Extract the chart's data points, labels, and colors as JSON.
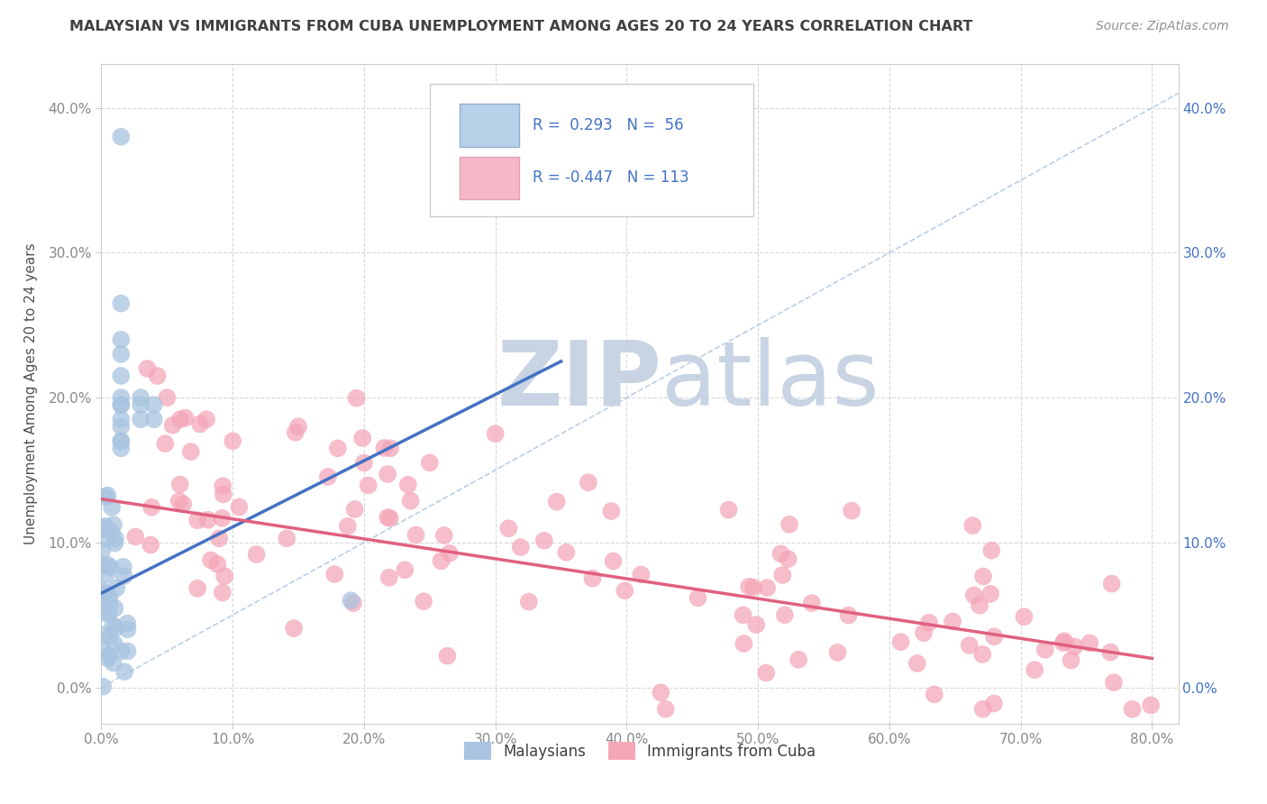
{
  "title": "MALAYSIAN VS IMMIGRANTS FROM CUBA UNEMPLOYMENT AMONG AGES 20 TO 24 YEARS CORRELATION CHART",
  "source": "Source: ZipAtlas.com",
  "ylabel": "Unemployment Among Ages 20 to 24 years",
  "xlim": [
    0.0,
    0.82
  ],
  "ylim": [
    -0.025,
    0.43
  ],
  "yticks": [
    0.0,
    0.1,
    0.2,
    0.3,
    0.4
  ],
  "ytick_labels": [
    "0.0%",
    "10.0%",
    "20.0%",
    "30.0%",
    "40.0%"
  ],
  "xticks": [
    0.0,
    0.1,
    0.2,
    0.3,
    0.4,
    0.5,
    0.6,
    0.7,
    0.8
  ],
  "xtick_labels": [
    "0.0%",
    "10.0%",
    "20.0%",
    "30.0%",
    "40.0%",
    "50.0%",
    "60.0%",
    "70.0%",
    "80.0%"
  ],
  "r_malaysian": 0.293,
  "n_malaysian": 56,
  "r_cuba": -0.447,
  "n_cuba": 113,
  "scatter_blue_color": "#a8c4e0",
  "scatter_pink_color": "#f4a7b9",
  "line_blue_color": "#4472c4",
  "line_pink_color": "#e06080",
  "diagonal_color": "#a8c4e0",
  "title_color": "#404040",
  "source_color": "#909090",
  "legend_text_color": "#4472c4",
  "axis_tick_color": "#4472c4",
  "grid_color": "#d8d8d8",
  "background_color": "#ffffff",
  "watermark_zip_color": "#c8d4e4",
  "watermark_atlas_color": "#c8d4e4",
  "legend_box_color_blue": "#b8d0e8",
  "legend_box_color_pink": "#f4b8c8",
  "malaysians_label": "Malaysians",
  "cuba_label": "Immigrants from Cuba",
  "blue_line_x0": 0.0,
  "blue_line_y0": 0.065,
  "blue_line_x1": 0.35,
  "blue_line_y1": 0.225,
  "pink_line_x0": 0.0,
  "pink_line_y0": 0.13,
  "pink_line_x1": 0.8,
  "pink_line_y1": 0.02
}
